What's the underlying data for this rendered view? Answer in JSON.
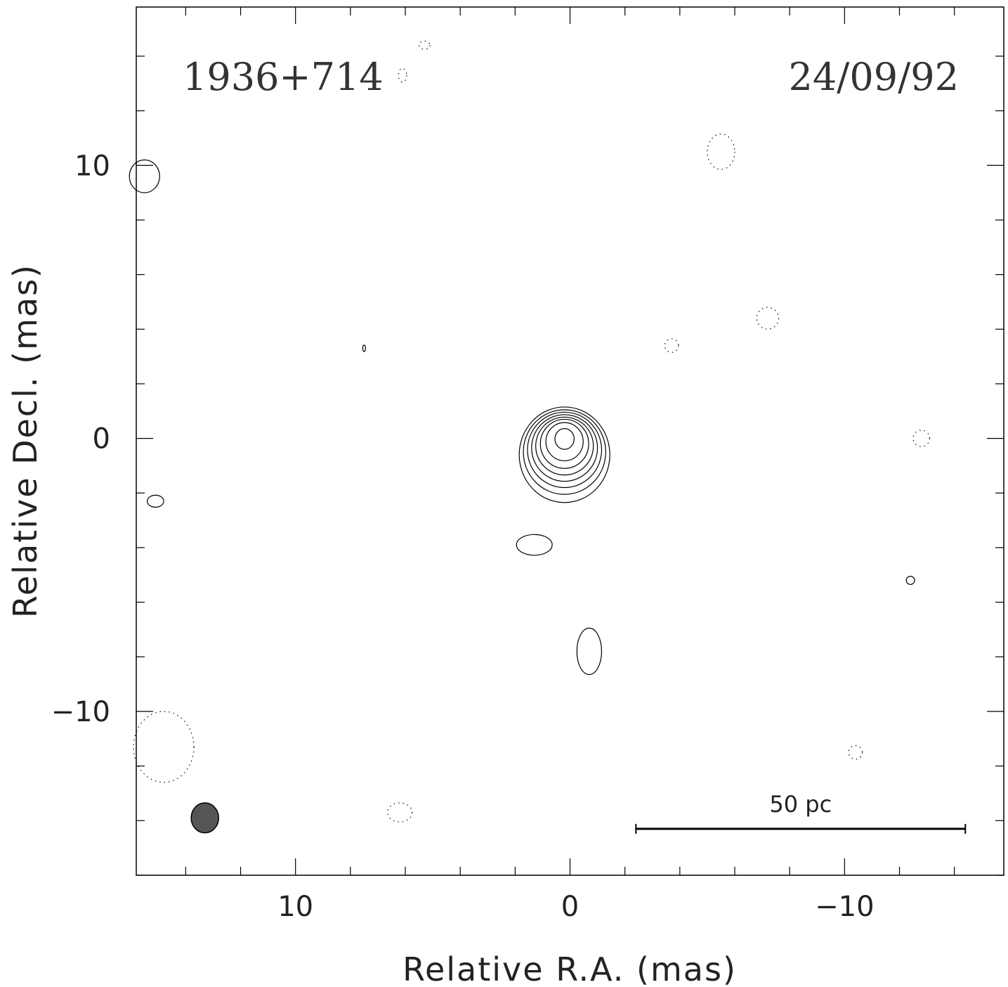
{
  "chart_data": {
    "type": "contour",
    "source_name": "1936+714",
    "epoch": "24/09/92",
    "xlabel": "Relative R.A. (mas)",
    "ylabel": "Relative Decl. (mas)",
    "xlim": [
      15.8,
      -15.8
    ],
    "ylim": [
      -16.0,
      15.8
    ],
    "x_major_ticks": [
      10,
      0,
      -10
    ],
    "x_tick_labels": [
      "10",
      "0",
      "−10"
    ],
    "y_major_ticks": [
      10,
      0,
      -10
    ],
    "y_tick_labels": [
      "10",
      "0",
      "−10"
    ],
    "minor_tick_step": 2,
    "scale_bar": {
      "label": "50 pc",
      "x_start": -2.4,
      "x_end": -14.4,
      "y": -14.3
    },
    "beam": {
      "x": 13.3,
      "y": -13.9,
      "major_axis": 1.1,
      "minor_axis": 1.0,
      "fill": "#555555"
    },
    "core_contours": {
      "center": [
        0.2,
        0.0
      ],
      "ellipses": [
        {
          "rx": 1.65,
          "ry": 1.75,
          "dy": -0.6
        },
        {
          "rx": 1.5,
          "ry": 1.55,
          "dy": -0.5
        },
        {
          "rx": 1.35,
          "ry": 1.38,
          "dy": -0.42
        },
        {
          "rx": 1.2,
          "ry": 1.22,
          "dy": -0.35
        },
        {
          "rx": 1.05,
          "ry": 1.06,
          "dy": -0.28
        },
        {
          "rx": 0.88,
          "ry": 0.9,
          "dy": -0.2
        },
        {
          "rx": 0.68,
          "ry": 0.7,
          "dy": -0.12
        },
        {
          "rx": 0.35,
          "ry": 0.38,
          "dy": -0.02
        }
      ]
    },
    "positive_features": [
      {
        "x": 1.3,
        "y": -3.9,
        "rx": 0.65,
        "ry": 0.38
      },
      {
        "x": -0.7,
        "y": -7.8,
        "rx": 0.45,
        "ry": 0.85
      },
      {
        "x": 7.5,
        "y": 3.3,
        "rx": 0.05,
        "ry": 0.12
      },
      {
        "x": 15.1,
        "y": -2.3,
        "rx": 0.3,
        "ry": 0.22
      },
      {
        "x": -12.4,
        "y": -5.2,
        "rx": 0.15,
        "ry": 0.15
      },
      {
        "x": 15.5,
        "y": 9.6,
        "rx": 0.55,
        "ry": 0.6
      }
    ],
    "negative_features": [
      {
        "x": -5.5,
        "y": 10.5,
        "rx": 0.5,
        "ry": 0.65
      },
      {
        "x": -7.2,
        "y": 4.4,
        "rx": 0.4,
        "ry": 0.4
      },
      {
        "x": -3.7,
        "y": 3.4,
        "rx": 0.25,
        "ry": 0.25
      },
      {
        "x": -12.8,
        "y": 0.0,
        "rx": 0.3,
        "ry": 0.3
      },
      {
        "x": -10.4,
        "y": -11.5,
        "rx": 0.25,
        "ry": 0.25
      },
      {
        "x": 6.2,
        "y": -13.7,
        "rx": 0.45,
        "ry": 0.35
      },
      {
        "x": 5.3,
        "y": 14.4,
        "rx": 0.2,
        "ry": 0.15
      },
      {
        "x": 6.1,
        "y": 13.3,
        "rx": 0.15,
        "ry": 0.25
      },
      {
        "x": 14.8,
        "y": -11.3,
        "rx": 1.1,
        "ry": 1.3
      }
    ]
  }
}
